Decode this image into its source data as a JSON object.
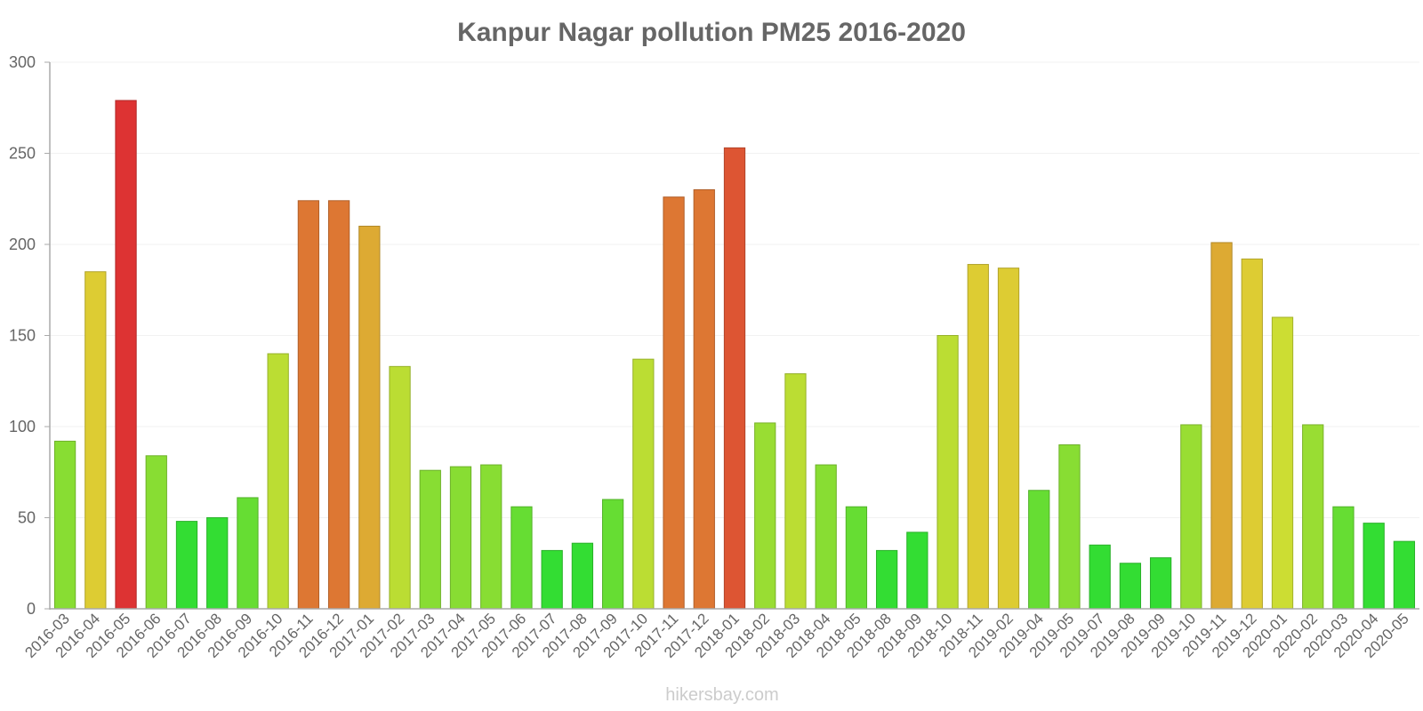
{
  "chart_data": {
    "type": "bar",
    "title": "Kanpur Nagar pollution PM25 2016-2020",
    "xlabel": "",
    "ylabel": "",
    "ylim": [
      0,
      300
    ],
    "yticks": [
      0,
      50,
      100,
      150,
      200,
      250,
      300
    ],
    "grid": true,
    "categories": [
      "2016-03",
      "2016-04",
      "2016-05",
      "2016-06",
      "2016-07",
      "2016-08",
      "2016-09",
      "2016-10",
      "2016-11",
      "2016-12",
      "2017-01",
      "2017-02",
      "2017-03",
      "2017-04",
      "2017-05",
      "2017-06",
      "2017-07",
      "2017-08",
      "2017-09",
      "2017-10",
      "2017-11",
      "2017-12",
      "2018-01",
      "2018-02",
      "2018-03",
      "2018-04",
      "2018-05",
      "2018-08",
      "2018-09",
      "2018-10",
      "2018-11",
      "2019-02",
      "2019-04",
      "2019-05",
      "2019-07",
      "2019-08",
      "2019-09",
      "2019-10",
      "2019-11",
      "2019-12",
      "2020-01",
      "2020-02",
      "2020-03",
      "2020-04",
      "2020-05"
    ],
    "values": [
      92,
      185,
      279,
      84,
      48,
      50,
      61,
      140,
      224,
      224,
      210,
      133,
      76,
      78,
      79,
      56,
      32,
      36,
      60,
      137,
      226,
      230,
      253,
      102,
      129,
      79,
      56,
      32,
      42,
      150,
      189,
      187,
      65,
      90,
      35,
      25,
      28,
      101,
      201,
      192,
      160,
      101,
      56,
      47,
      37
    ],
    "color_scale": [
      {
        "max": 50,
        "color": "#33dd33"
      },
      {
        "max": 75,
        "color": "#66dd33"
      },
      {
        "max": 100,
        "color": "#88dd33"
      },
      {
        "max": 125,
        "color": "#99dd33"
      },
      {
        "max": 150,
        "color": "#bbdd33"
      },
      {
        "max": 175,
        "color": "#ccdd33"
      },
      {
        "max": 200,
        "color": "#ddcc33"
      },
      {
        "max": 215,
        "color": "#ddaa33"
      },
      {
        "max": 235,
        "color": "#dd7733"
      },
      {
        "max": 265,
        "color": "#dd5533"
      },
      {
        "max": 1000,
        "color": "#dd3333"
      }
    ]
  },
  "watermark": "hikersbay.com"
}
